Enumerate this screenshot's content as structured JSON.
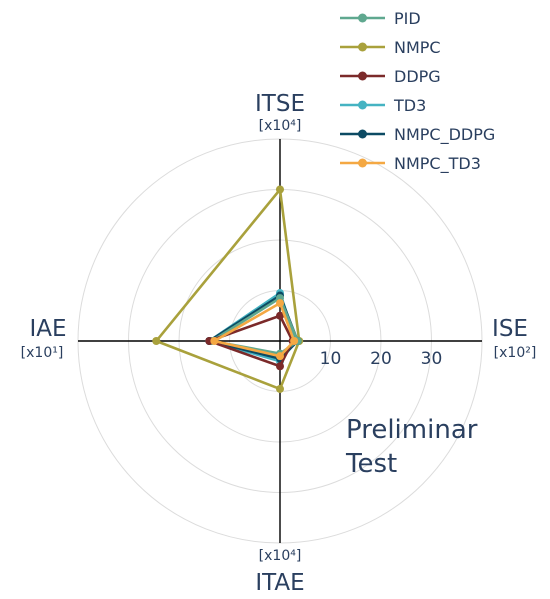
{
  "chart_data": {
    "type": "radar",
    "axes": [
      {
        "name": "ISE",
        "unit": "[x10²]",
        "direction": "right"
      },
      {
        "name": "ITSE",
        "unit": "[x10⁴]",
        "direction": "up"
      },
      {
        "name": "IAE",
        "unit": "[x10¹]",
        "direction": "left"
      },
      {
        "name": "ITAE",
        "unit": "[x10⁴]",
        "direction": "down"
      }
    ],
    "radial_range": [
      0,
      40
    ],
    "radial_ticks": [
      10,
      20,
      30
    ],
    "grid": true,
    "annotation": [
      "Preliminar",
      "Test"
    ],
    "legend_position": "top-right",
    "series": [
      {
        "name": "PID",
        "color": "#5fa88f",
        "values": [
          3.5,
          8.5,
          13.5,
          2.5
        ]
      },
      {
        "name": "NMPC",
        "color": "#a9a13c",
        "values": [
          3.8,
          30,
          24.5,
          9.5
        ]
      },
      {
        "name": "DDPG",
        "color": "#7b2a2a",
        "values": [
          2.5,
          5.0,
          14.0,
          5.0
        ]
      },
      {
        "name": "TD3",
        "color": "#45b3c2",
        "values": [
          3.2,
          9.5,
          14.0,
          4.0
        ]
      },
      {
        "name": "NMPC_DDPG",
        "color": "#0c4a63",
        "values": [
          3.5,
          9.0,
          14.0,
          3.5
        ]
      },
      {
        "name": "NMPC_TD3",
        "color": "#f4a843",
        "values": [
          2.8,
          7.5,
          13.0,
          3.0
        ]
      }
    ]
  }
}
